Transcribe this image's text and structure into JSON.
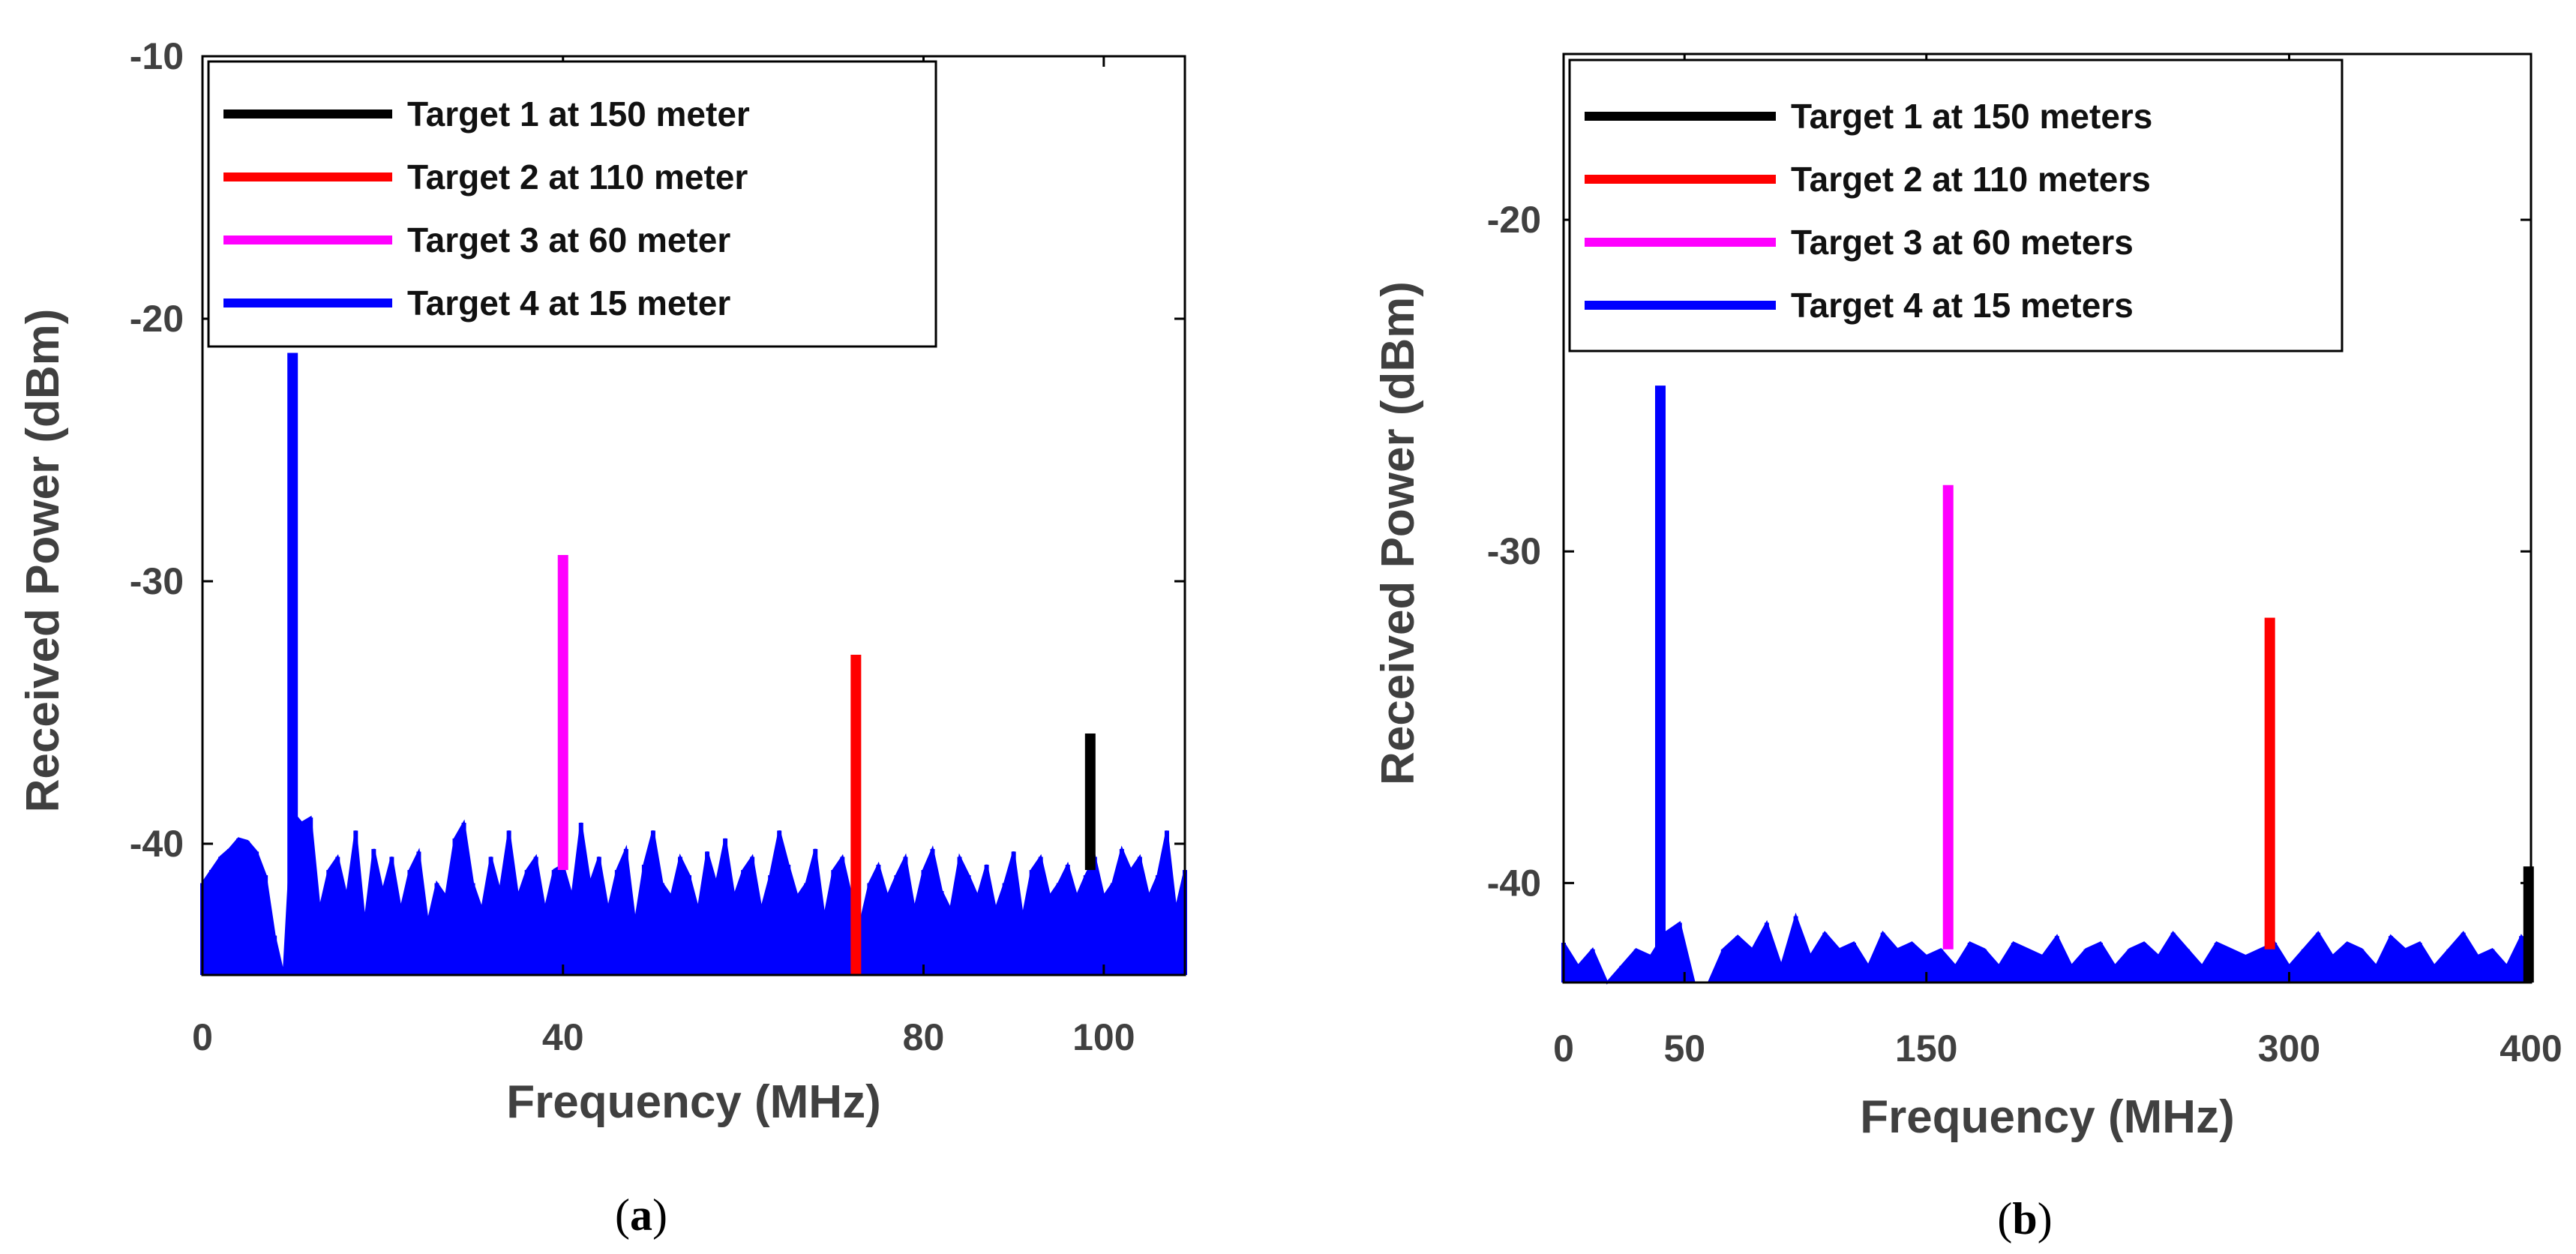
{
  "chart_data": [
    {
      "type": "line",
      "panel": "a",
      "caption_open": "(",
      "caption_letter": "a",
      "caption_close": ")",
      "xlabel": "Frequency (MHz)",
      "ylabel": "Received Power (dBm)",
      "xlim": [
        0,
        109
      ],
      "ylim": [
        -45,
        -10
      ],
      "xticks": [
        0,
        40,
        80,
        100
      ],
      "yticks": [
        -10,
        -20,
        -30,
        -40
      ],
      "legend_position": "top-left",
      "noise_floor": -45,
      "noise_color": "#0000FF",
      "noise": {
        "x": [
          0,
          1,
          2,
          3,
          4,
          5,
          6,
          7,
          8,
          9,
          10,
          11,
          12,
          13,
          14,
          15,
          16,
          17,
          18,
          19,
          20,
          21,
          22,
          23,
          24,
          25,
          26,
          27,
          28,
          29,
          30,
          31,
          32,
          33,
          34,
          35,
          36,
          37,
          38,
          39,
          40,
          41,
          42,
          43,
          44,
          45,
          46,
          47,
          48,
          49,
          50,
          51,
          52,
          53,
          54,
          55,
          56,
          57,
          58,
          59,
          60,
          61,
          62,
          63,
          64,
          65,
          66,
          67,
          68,
          69,
          70,
          71,
          72,
          73,
          74,
          75,
          76,
          77,
          78,
          79,
          80,
          81,
          82,
          83,
          84,
          85,
          86,
          87,
          88,
          89,
          90,
          91,
          92,
          93,
          94,
          95,
          96,
          97,
          98,
          99,
          100,
          101,
          102,
          103,
          104,
          105,
          106,
          107,
          108,
          109
        ],
        "y": [
          -41.5,
          -41,
          -40.5,
          -40.2,
          -39.8,
          -39.9,
          -40.3,
          -41.2,
          -43.5,
          -45,
          -38.8,
          -39.2,
          -39,
          -42.5,
          -41,
          -40.5,
          -42,
          -39.5,
          -43,
          -40.2,
          -41.8,
          -40.5,
          -42.5,
          -41,
          -40.3,
          -43,
          -41.5,
          -42,
          -39.8,
          -39.2,
          -41.5,
          -42.5,
          -40.5,
          -41.8,
          -39.5,
          -42,
          -41,
          -40.5,
          -42.5,
          -41,
          -40.8,
          -42,
          -39.2,
          -41.5,
          -40.5,
          -42.5,
          -41,
          -40.2,
          -43,
          -40.8,
          -39.5,
          -41.5,
          -42,
          -40.5,
          -41.2,
          -42.5,
          -40.3,
          -41.5,
          -39.8,
          -42,
          -41,
          -40.5,
          -42.5,
          -41.2,
          -39.5,
          -40.8,
          -42,
          -41.5,
          -40.2,
          -42.8,
          -41,
          -40.5,
          -42,
          -43,
          -41.5,
          -40.8,
          -42,
          -41.2,
          -40.5,
          -42.5,
          -41,
          -40.2,
          -41.8,
          -42.5,
          -40.5,
          -41.2,
          -42,
          -40.8,
          -42.5,
          -41.5,
          -40.3,
          -42.8,
          -41,
          -40.5,
          -42,
          -41.5,
          -40.8,
          -42,
          -41.2,
          -40.5,
          -42,
          -41.5,
          -40.2,
          -41,
          -40.5,
          -42,
          -41.2,
          -39.5,
          -42.5,
          -41
        ]
      },
      "series": [
        {
          "name": "Target 1 at 150 meter",
          "color": "#000000",
          "peak_x": 98.5,
          "peak_y": -35.8,
          "base_y": -41
        },
        {
          "name": "Target 2 at 110 meter",
          "color": "#FF0000",
          "peak_x": 72.5,
          "peak_y": -32.8,
          "base_y": -45
        },
        {
          "name": "Target 3 at 60 meter",
          "color": "#FF00FF",
          "peak_x": 40,
          "peak_y": -29,
          "base_y": -41
        },
        {
          "name": "Target 4 at 15 meter",
          "color": "#0000FF",
          "peak_x": 10,
          "peak_y": -21.3,
          "base_y": -45
        }
      ]
    },
    {
      "type": "line",
      "panel": "b",
      "caption_open": "(",
      "caption_letter": "b",
      "caption_close": ")",
      "xlabel": "Frequency (MHz)",
      "ylabel": "Received Power (dBm)",
      "xlim": [
        0,
        400
      ],
      "ylim": [
        -43,
        -15
      ],
      "xticks": [
        0,
        50,
        150,
        300,
        400
      ],
      "yticks": [
        -20,
        -30,
        -40
      ],
      "legend_position": "top-left",
      "noise_floor": -43,
      "noise_color": "#0000FF",
      "noise": {
        "x": [
          0,
          6,
          12,
          18,
          24,
          30,
          36,
          42,
          48,
          54,
          60,
          66,
          72,
          78,
          84,
          90,
          96,
          102,
          108,
          114,
          120,
          126,
          132,
          138,
          144,
          150,
          156,
          162,
          168,
          174,
          180,
          186,
          192,
          198,
          204,
          210,
          216,
          222,
          228,
          234,
          240,
          246,
          252,
          258,
          264,
          270,
          276,
          282,
          288,
          294,
          300,
          306,
          312,
          318,
          324,
          330,
          336,
          342,
          348,
          354,
          360,
          366,
          372,
          378,
          384,
          390,
          396,
          400
        ],
        "y": [
          -41.8,
          -42.5,
          -42,
          -43,
          -42.5,
          -42,
          -42.2,
          -41.5,
          -41.2,
          -43,
          -43,
          -42,
          -41.6,
          -42,
          -41.2,
          -42.5,
          -41,
          -42.2,
          -41.5,
          -42,
          -41.8,
          -42.5,
          -41.5,
          -42,
          -41.8,
          -42.2,
          -42,
          -42.5,
          -41.8,
          -42,
          -42.5,
          -41.8,
          -42,
          -42.2,
          -41.6,
          -42.5,
          -42,
          -41.8,
          -42.5,
          -42,
          -41.8,
          -42.2,
          -41.5,
          -42,
          -42.5,
          -41.8,
          -42,
          -42.2,
          -42,
          -41.8,
          -42.5,
          -42,
          -41.5,
          -42.2,
          -41.8,
          -42,
          -42.5,
          -41.6,
          -42,
          -41.8,
          -42.5,
          -42,
          -41.5,
          -42.2,
          -42,
          -42.5,
          -41.6,
          -42
        ]
      },
      "series": [
        {
          "name": "Target 1 at 150 meters",
          "color": "#000000",
          "peak_x": 399,
          "peak_y": -39.5,
          "base_y": -43
        },
        {
          "name": "Target 2 at 110 meters",
          "color": "#FF0000",
          "peak_x": 292,
          "peak_y": -32,
          "base_y": -42
        },
        {
          "name": "Target 3 at 60 meters",
          "color": "#FF00FF",
          "peak_x": 159,
          "peak_y": -28,
          "base_y": -42
        },
        {
          "name": "Target 4 at 15 meters",
          "color": "#0000FF",
          "peak_x": 40,
          "peak_y": -25,
          "base_y": -43
        }
      ]
    }
  ]
}
